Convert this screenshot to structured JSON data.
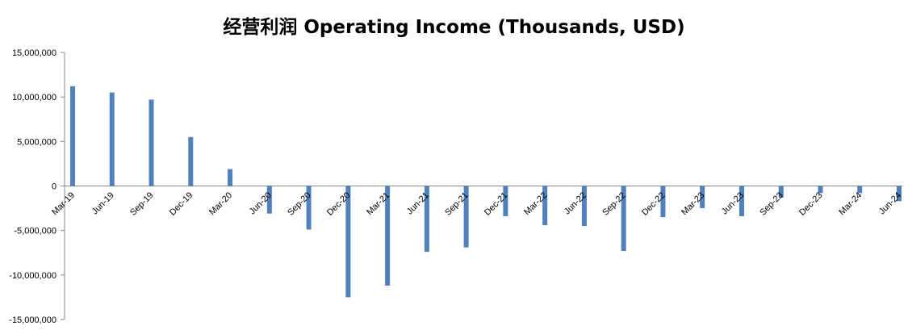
{
  "chart_data": {
    "type": "bar",
    "title": "经营利润 Operating Income (Thousands, USD)",
    "xlabel": "",
    "ylabel": "",
    "ylim": [
      -15000000,
      15000000
    ],
    "ytick_values": [
      15000000,
      10000000,
      5000000,
      0,
      -5000000,
      -10000000,
      -15000000
    ],
    "ytick_labels": [
      "15,000,000",
      "10,000,000",
      "5,000,000",
      "0",
      "-5,000,000",
      "-10,000,000",
      "-15,000,000"
    ],
    "grid": false,
    "legend": "none",
    "bar_color": "#4F81BD",
    "categories": [
      "Mar-19",
      "Jun-19",
      "Sep-19",
      "Dec-19",
      "Mar-20",
      "Jun-20",
      "Sep-20",
      "Dec-20",
      "Mar-21",
      "Jun-21",
      "Sep-21",
      "Dec-21",
      "Mar-22",
      "Jun-22",
      "Sep-22",
      "Dec-22",
      "Mar-23",
      "Jun-23",
      "Sep-23",
      "Dec-23",
      "Mar-24",
      "Jun-24"
    ],
    "values": [
      11200000,
      10500000,
      9700000,
      5500000,
      1900000,
      -3100000,
      -4900000,
      -12500000,
      -11200000,
      -7400000,
      -6900000,
      -3400000,
      -4400000,
      -4500000,
      -7300000,
      -3500000,
      -2500000,
      -3400000,
      -1300000,
      -800000,
      -800000,
      -1700000
    ]
  }
}
